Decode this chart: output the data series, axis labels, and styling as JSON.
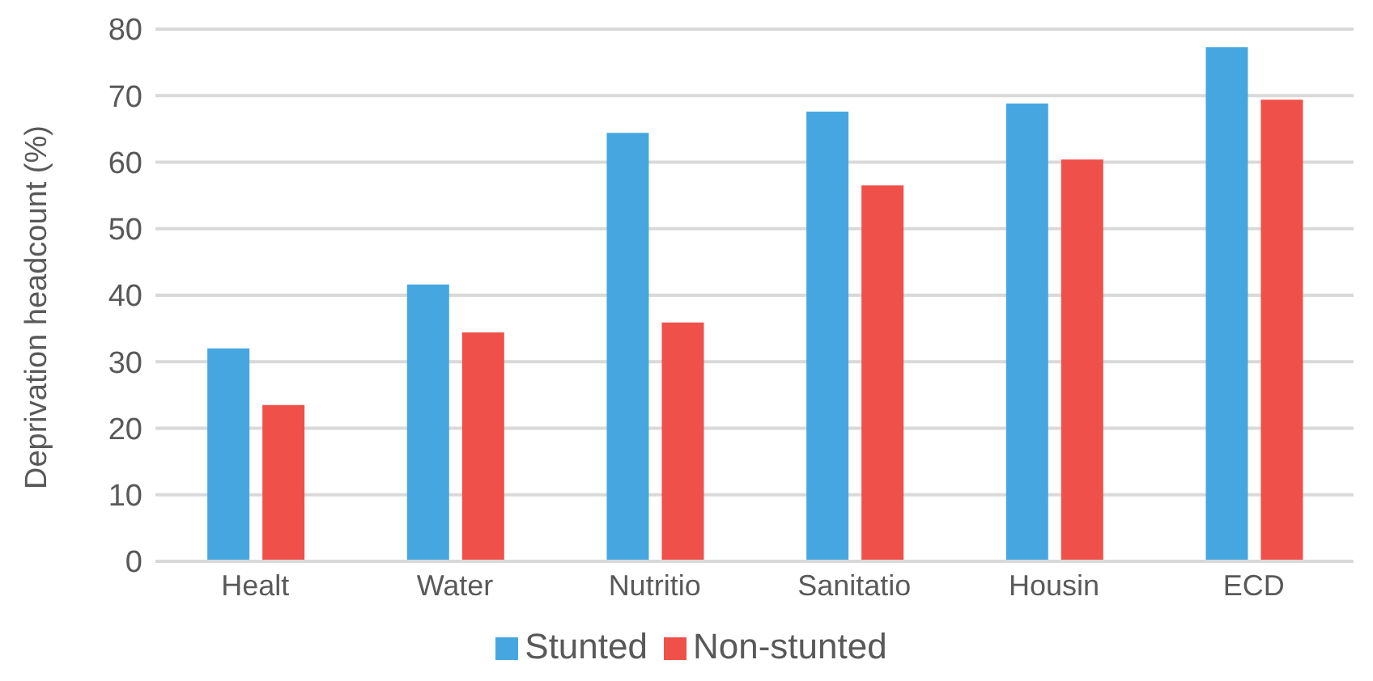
{
  "chart_data": {
    "type": "bar",
    "ylabel": "Deprivation headcount (%)",
    "categories": [
      "Healt",
      "Water",
      "Nutritio",
      "Sanitatio",
      "Housin",
      "ECD"
    ],
    "series": [
      {
        "name": "Stunted",
        "color": "#46a7e0",
        "values": [
          32.0,
          41.6,
          64.4,
          67.6,
          68.8,
          77.3
        ]
      },
      {
        "name": "Non-stunted",
        "color": "#ef504a",
        "values": [
          23.5,
          34.4,
          35.9,
          56.5,
          60.4,
          69.4
        ]
      }
    ],
    "ylim": [
      0,
      80
    ],
    "yticks": [
      0,
      10,
      20,
      30,
      40,
      50,
      60,
      70,
      80
    ],
    "grid": "y",
    "legend": "bottom"
  }
}
